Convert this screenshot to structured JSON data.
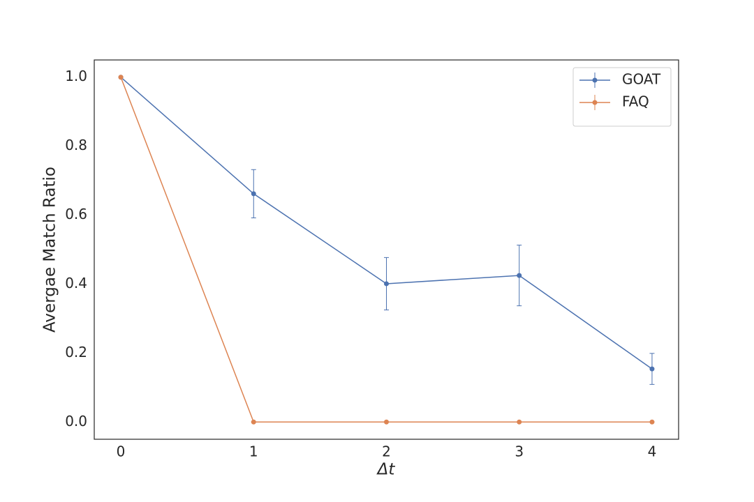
{
  "chart_data": {
    "type": "line",
    "xlabel": "Δt",
    "ylabel": "Avergae Match Ratio",
    "x": [
      0,
      1,
      2,
      3,
      4
    ],
    "series": [
      {
        "name": "GOAT",
        "color": "#4c72b0",
        "values": [
          1.0,
          0.662,
          0.401,
          0.425,
          0.154
        ],
        "errors": [
          0,
          0.07,
          0.076,
          0.088,
          0.045
        ]
      },
      {
        "name": "FAQ",
        "color": "#dd8452",
        "values": [
          1.0,
          0,
          0,
          0,
          0
        ],
        "errors": [
          0,
          0,
          0,
          0,
          0
        ]
      }
    ],
    "xlim": [
      -0.2,
      4.2
    ],
    "xticks": [
      0,
      1,
      2,
      3,
      4
    ],
    "ylim": [
      -0.05,
      1.05
    ],
    "yticks": [
      {
        "value": 0,
        "label": "0.0"
      },
      0.2,
      0.4,
      0.6,
      0.8,
      {
        "value": 1,
        "label": "1.0"
      }
    ],
    "grid": false,
    "legend": "upper right"
  }
}
